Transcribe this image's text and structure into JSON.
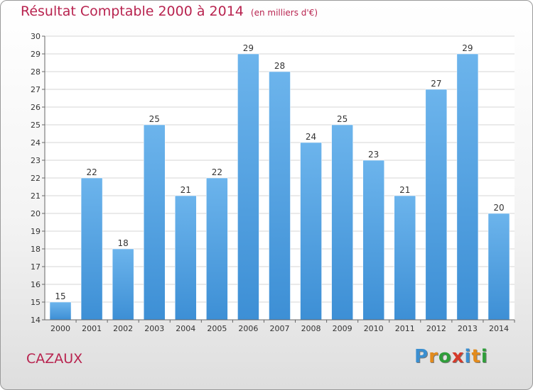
{
  "title": "Résultat Comptable 2000 à 2014",
  "subtitle": "(en milliers d'€)",
  "place": "CAZAUX",
  "logo": {
    "letters": [
      "P",
      "r",
      "o",
      "x",
      "i",
      "t",
      "i"
    ],
    "colors": [
      "#3b8fd0",
      "#e38b1c",
      "#2f9e3a",
      "#d63a2a",
      "#3b8fd0",
      "#e38b1c",
      "#2f9e3a"
    ]
  },
  "chart_data": {
    "type": "bar",
    "title": "Résultat Comptable 2000 à 2014",
    "subtitle": "(en milliers d'€)",
    "xlabel": "",
    "ylabel": "",
    "categories": [
      "2000",
      "2001",
      "2002",
      "2003",
      "2004",
      "2005",
      "2006",
      "2007",
      "2008",
      "2009",
      "2010",
      "2011",
      "2012",
      "2013",
      "2014"
    ],
    "values": [
      15,
      22,
      18,
      25,
      21,
      22,
      29,
      28,
      24,
      25,
      23,
      21,
      27,
      29,
      20
    ],
    "ylim": [
      14,
      30
    ],
    "yticks": [
      14,
      15,
      16,
      17,
      18,
      19,
      20,
      21,
      22,
      23,
      24,
      25,
      26,
      27,
      28,
      29,
      30
    ],
    "grid": true,
    "bar_color": "#3d8fd5",
    "bar_color_light": "#6cb4ec"
  }
}
